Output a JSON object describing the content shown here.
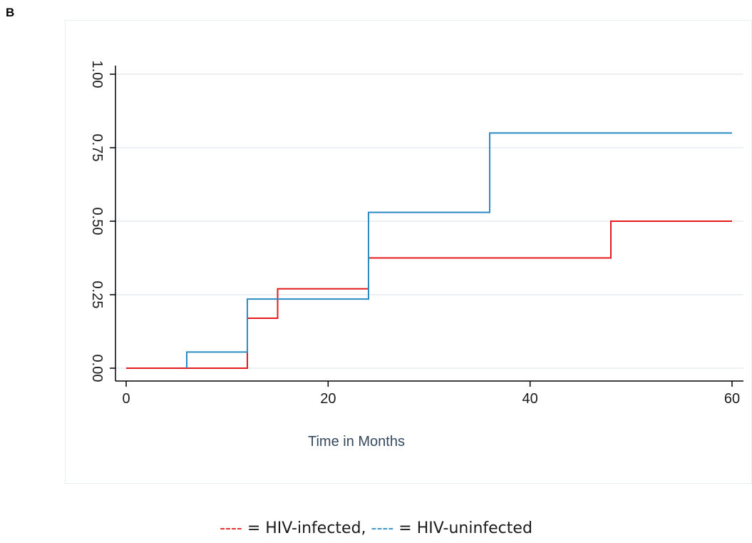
{
  "panel_label": "B",
  "legend": {
    "infected_marker": "----",
    "infected_text": " = HIV-infected, ",
    "uninfected_marker": "----",
    "uninfected_text": " = HIV-uninfected"
  },
  "colors": {
    "hiv_infected": "#e41a1c",
    "hiv_uninfected": "#2b8cc4",
    "grid": "#e6ecef",
    "axis": "#000000"
  },
  "chart_data": {
    "type": "line",
    "step": true,
    "title": "",
    "xlabel": "Time in Months",
    "ylabel": "",
    "xlim": [
      0,
      60
    ],
    "ylim": [
      0,
      1
    ],
    "xticks": [
      0,
      20,
      40,
      60
    ],
    "xtick_labels": [
      "0",
      "20",
      "40",
      "60"
    ],
    "yticks": [
      0,
      0.25,
      0.5,
      0.75,
      1
    ],
    "ytick_labels": [
      "0.00",
      "0.25",
      "0.50",
      "0.75",
      "1.00"
    ],
    "grid": true,
    "legend_position": "bottom",
    "series": [
      {
        "name": "HIV-infected",
        "color_key": "hiv_infected",
        "x": [
          0,
          12,
          15,
          24,
          48,
          60
        ],
        "y": [
          0,
          0.17,
          0.27,
          0.375,
          0.5,
          0.5
        ]
      },
      {
        "name": "HIV-uninfected",
        "color_key": "hiv_uninfected",
        "x": [
          6,
          12,
          24,
          36,
          60
        ],
        "y": [
          0.055,
          0.235,
          0.53,
          0.8,
          0.8
        ]
      }
    ]
  }
}
